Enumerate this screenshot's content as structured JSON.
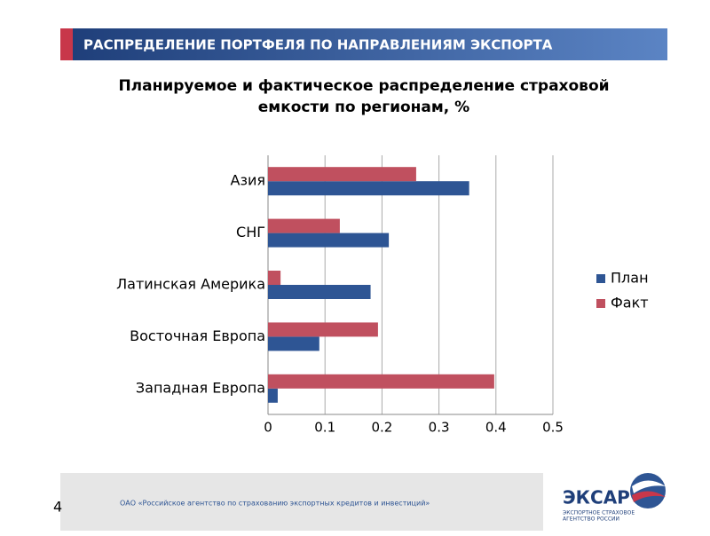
{
  "header": {
    "title": "РАСПРЕДЕЛЕНИЕ ПОРТФЕЛЯ ПО НАПРАВЛЕНИЯМ ЭКСПОРТА"
  },
  "chart_data": {
    "type": "hbar",
    "title": [
      "Планируемое  и фактическое распределение страховой",
      "емкости по регионам, %"
    ],
    "categories": [
      "Азия",
      "СНГ",
      "Латинская Америка",
      "Восточная Европа",
      "Западная Европа"
    ],
    "series": [
      {
        "name": "План",
        "color": "#2e5594",
        "values": [
          0.353,
          0.212,
          0.18,
          0.09,
          0.017
        ]
      },
      {
        "name": "Факт",
        "color": "#c0505f",
        "values": [
          0.26,
          0.126,
          0.022,
          0.193,
          0.397
        ]
      }
    ],
    "xlim": [
      0,
      0.5
    ],
    "xticks": [
      0,
      0.1,
      0.2,
      0.3,
      0.4,
      0.5
    ],
    "grid": true,
    "legend": "right"
  },
  "footer": {
    "page": "4",
    "company": "ОАО «Российское агентство по страхованию экспортных кредитов и инвестиций»",
    "logo": "ЭКСАР",
    "logo_sub": [
      "ЭКСПОРТНОЕ СТРАХОВОЕ",
      "АГЕНТСТВО РОССИИ"
    ]
  }
}
